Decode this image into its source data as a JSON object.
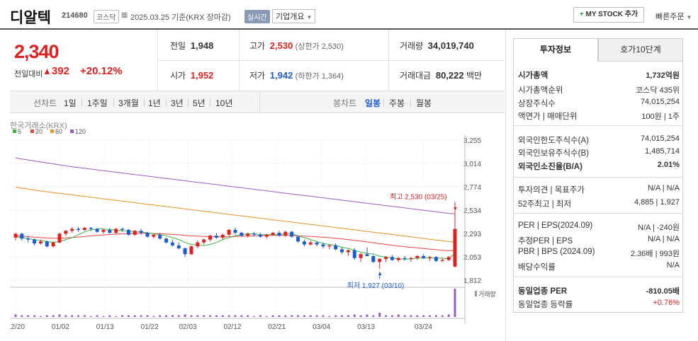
{
  "header": {
    "name": "디알텍",
    "code": "214680",
    "market": "코스닥",
    "date": "2025.03.25  기준(KRX 장마감)",
    "live": "실시간",
    "company_info": "기업개요",
    "my_stock": "MY STOCK 추가",
    "quick_order": "빠른주문"
  },
  "price": {
    "current": "2,340",
    "change_label": "전일대비",
    "change": "392",
    "change_pct": "+20.12%"
  },
  "stats": {
    "prev_label": "전일",
    "prev": "1,948",
    "open_label": "시가",
    "open": "1,952",
    "high_label": "고가",
    "high": "2,530",
    "upper_limit": "(상한가 2,530)",
    "low_label": "저가",
    "low": "1,942",
    "lower_limit": "(하한가 1,364)",
    "volume_label": "거래량",
    "volume": "34,019,740",
    "amount_label": "거래대금",
    "amount": "80,222",
    "amount_unit": "백만"
  },
  "periods": {
    "line_label": "선차트",
    "line": [
      "1일",
      "1주일",
      "3개월",
      "1년",
      "3년",
      "5년",
      "10년"
    ],
    "candle_label": "봉차트",
    "candle": [
      "일봉",
      "주봉",
      "월봉"
    ],
    "active": "일봉"
  },
  "chart_data": {
    "type": "candlestick",
    "source": "한국거래소(KRX)",
    "legend": [
      {
        "name": "5",
        "color": "#3cb43c"
      },
      {
        "name": "20",
        "color": "#e8453c"
      },
      {
        "name": "60",
        "color": "#f0902a"
      },
      {
        "name": "120",
        "color": "#9a5bc8"
      }
    ],
    "y_ticks": [
      "3,255",
      "3,014",
      "2,774",
      "2,534",
      "2,293",
      "2,053",
      "1,812"
    ],
    "ylim": [
      1812,
      3255
    ],
    "x_ticks": [
      "12/20",
      "01/02",
      "01/13",
      "01/22",
      "02/03",
      "02/12",
      "02/21",
      "03/04",
      "03/13",
      "03/24"
    ],
    "high_annotation": "최고 2,530 (03/25)",
    "low_annotation": "최저 1,927 (03/10)",
    "volume_label": "거래량",
    "candles": [
      [
        2250,
        2300,
        2220,
        2290
      ],
      [
        2290,
        2300,
        2220,
        2240
      ],
      [
        2240,
        2270,
        2200,
        2230
      ],
      [
        2230,
        2240,
        2170,
        2190
      ],
      [
        2190,
        2230,
        2180,
        2210
      ],
      [
        2210,
        2220,
        2150,
        2160
      ],
      [
        2160,
        2210,
        2150,
        2200
      ],
      [
        2200,
        2300,
        2190,
        2290
      ],
      [
        2290,
        2330,
        2270,
        2320
      ],
      [
        2320,
        2360,
        2300,
        2340
      ],
      [
        2340,
        2360,
        2310,
        2330
      ],
      [
        2330,
        2360,
        2320,
        2350
      ],
      [
        2350,
        2360,
        2320,
        2340
      ],
      [
        2340,
        2350,
        2300,
        2310
      ],
      [
        2310,
        2340,
        2290,
        2330
      ],
      [
        2330,
        2350,
        2290,
        2300
      ],
      [
        2300,
        2350,
        2290,
        2340
      ],
      [
        2340,
        2350,
        2310,
        2330
      ],
      [
        2330,
        2340,
        2270,
        2280
      ],
      [
        2280,
        2330,
        2270,
        2320
      ],
      [
        2320,
        2340,
        2280,
        2300
      ],
      [
        2300,
        2310,
        2250,
        2260
      ],
      [
        2260,
        2290,
        2240,
        2280
      ],
      [
        2280,
        2300,
        2230,
        2240
      ],
      [
        2240,
        2250,
        2190,
        2200
      ],
      [
        2200,
        2230,
        2160,
        2170
      ],
      [
        2170,
        2200,
        2130,
        2140
      ],
      [
        2140,
        2150,
        2050,
        2080
      ],
      [
        2080,
        2170,
        2070,
        2160
      ],
      [
        2160,
        2220,
        2140,
        2200
      ],
      [
        2200,
        2240,
        2180,
        2230
      ],
      [
        2230,
        2280,
        2210,
        2270
      ],
      [
        2270,
        2300,
        2240,
        2250
      ],
      [
        2250,
        2290,
        2230,
        2280
      ],
      [
        2280,
        2340,
        2270,
        2330
      ],
      [
        2330,
        2350,
        2280,
        2300
      ],
      [
        2300,
        2310,
        2260,
        2270
      ],
      [
        2270,
        2300,
        2250,
        2290
      ],
      [
        2290,
        2310,
        2260,
        2280
      ],
      [
        2280,
        2300,
        2250,
        2260
      ],
      [
        2260,
        2290,
        2240,
        2280
      ],
      [
        2280,
        2310,
        2270,
        2300
      ],
      [
        2300,
        2320,
        2260,
        2270
      ],
      [
        2270,
        2320,
        2260,
        2310
      ],
      [
        2310,
        2320,
        2250,
        2260
      ],
      [
        2260,
        2270,
        2200,
        2210
      ],
      [
        2210,
        2230,
        2160,
        2180
      ],
      [
        2180,
        2220,
        2170,
        2200
      ],
      [
        2200,
        2210,
        2160,
        2180
      ],
      [
        2180,
        2200,
        2140,
        2160
      ],
      [
        2160,
        2180,
        2130,
        2170
      ],
      [
        2170,
        2190,
        2120,
        2130
      ],
      [
        2130,
        2150,
        2080,
        2100
      ],
      [
        2100,
        2130,
        2060,
        2120
      ],
      [
        2120,
        2140,
        2020,
        2040
      ],
      [
        2040,
        2090,
        2000,
        2080
      ],
      [
        2080,
        2150,
        2060,
        2060
      ],
      [
        2060,
        2070,
        1990,
        2000
      ],
      [
        2000,
        2040,
        1927,
        2030
      ],
      [
        2030,
        2060,
        2000,
        2050
      ],
      [
        2050,
        2070,
        2010,
        2020
      ],
      [
        2020,
        2050,
        2000,
        2040
      ],
      [
        2040,
        2060,
        2010,
        2030
      ],
      [
        2030,
        2050,
        2000,
        2040
      ],
      [
        2040,
        2070,
        2020,
        2060
      ],
      [
        2060,
        2080,
        2030,
        2040
      ],
      [
        2040,
        2060,
        2010,
        2050
      ],
      [
        2050,
        2060,
        2000,
        2010
      ],
      [
        2010,
        2040,
        2000,
        2020
      ],
      [
        2020,
        2060,
        2010,
        2050
      ],
      [
        1952,
        2530,
        1942,
        2340
      ]
    ],
    "ma5": [
      2260,
      2250,
      2240,
      2230,
      2220,
      2210,
      2200,
      2210,
      2230,
      2250,
      2280,
      2310,
      2330,
      2340,
      2340,
      2330,
      2330,
      2320,
      2320,
      2310,
      2310,
      2300,
      2290,
      2280,
      2270,
      2250,
      2230,
      2200,
      2180,
      2170,
      2170,
      2180,
      2200,
      2230,
      2250,
      2270,
      2280,
      2290,
      2290,
      2280,
      2280,
      2280,
      2280,
      2290,
      2290,
      2270,
      2250,
      2230,
      2210,
      2190,
      2180,
      2170,
      2150,
      2140,
      2120,
      2100,
      2090,
      2080,
      2060,
      2050,
      2040,
      2030,
      2030,
      2030,
      2040,
      2040,
      2040,
      2040,
      2040,
      2030,
      2090
    ],
    "ma20": [
      2270,
      2265,
      2260,
      2255,
      2250,
      2248,
      2245,
      2245,
      2248,
      2252,
      2256,
      2262,
      2268,
      2274,
      2278,
      2282,
      2286,
      2290,
      2292,
      2293,
      2294,
      2294,
      2292,
      2290,
      2287,
      2283,
      2279,
      2273,
      2268,
      2265,
      2262,
      2260,
      2259,
      2259,
      2260,
      2262,
      2264,
      2266,
      2268,
      2270,
      2272,
      2273,
      2273,
      2272,
      2271,
      2268,
      2265,
      2262,
      2258,
      2254,
      2249,
      2243,
      2237,
      2230,
      2222,
      2214,
      2206,
      2197,
      2188,
      2180,
      2172,
      2164,
      2157,
      2150,
      2144,
      2138,
      2132,
      2126,
      2120,
      2115,
      2120
    ],
    "ma60": [
      2770,
      2760,
      2750,
      2740,
      2730,
      2722,
      2714,
      2706,
      2698,
      2690,
      2682,
      2674,
      2666,
      2658,
      2650,
      2642,
      2634,
      2626,
      2618,
      2610,
      2602,
      2594,
      2586,
      2578,
      2570,
      2562,
      2554,
      2546,
      2538,
      2530,
      2522,
      2514,
      2506,
      2498,
      2490,
      2482,
      2474,
      2466,
      2458,
      2450,
      2442,
      2434,
      2426,
      2418,
      2410,
      2402,
      2394,
      2386,
      2378,
      2370,
      2362,
      2354,
      2346,
      2338,
      2330,
      2322,
      2314,
      2306,
      2298,
      2290,
      2282,
      2274,
      2266,
      2258,
      2250,
      2242,
      2234,
      2226,
      2218,
      2210,
      2205
    ],
    "ma120": [
      3070,
      3060,
      3050,
      3040,
      3030,
      3020,
      3010,
      3000,
      2990,
      2980,
      2972,
      2964,
      2956,
      2948,
      2940,
      2932,
      2924,
      2916,
      2908,
      2900,
      2892,
      2884,
      2876,
      2868,
      2860,
      2852,
      2844,
      2836,
      2828,
      2820,
      2812,
      2804,
      2796,
      2788,
      2780,
      2772,
      2764,
      2756,
      2748,
      2740,
      2732,
      2724,
      2716,
      2708,
      2700,
      2692,
      2684,
      2676,
      2668,
      2660,
      2652,
      2644,
      2636,
      2628,
      2620,
      2612,
      2604,
      2596,
      2588,
      2580,
      2572,
      2564,
      2556,
      2548,
      2540,
      2532,
      2524,
      2516,
      2508,
      2500,
      2495
    ],
    "volume": [
      3,
      2,
      2,
      2,
      1,
      2,
      2,
      3,
      2,
      2,
      2,
      2,
      1,
      2,
      1,
      2,
      1,
      2,
      2,
      2,
      2,
      2,
      1,
      2,
      2,
      2,
      2,
      3,
      2,
      2,
      2,
      2,
      2,
      2,
      2,
      2,
      2,
      2,
      1,
      2,
      1,
      2,
      2,
      2,
      2,
      2,
      2,
      2,
      2,
      2,
      1,
      2,
      2,
      2,
      3,
      2,
      3,
      2,
      5,
      2,
      2,
      3,
      2,
      2,
      2,
      2,
      2,
      2,
      2,
      3,
      34
    ]
  },
  "side": {
    "tab_active": "투자정보",
    "tab_inactive": "호가10단계",
    "rows": [
      {
        "l": "시가총액",
        "r": "1,732억원",
        "bold": true
      },
      {
        "l": "시가총액순위",
        "r": "코스닥 435위"
      },
      {
        "l": "상장주식수",
        "r": "74,015,254"
      },
      {
        "l": "액면가 | 매매단위",
        "r": "100원 | 1주"
      },
      {
        "l": "외국인한도주식수(A)",
        "r": "74,015,254"
      },
      {
        "l": "외국인보유주식수(B)",
        "r": "1,485,714"
      },
      {
        "l": "외국인소진율(B/A)",
        "r": "2.01%",
        "bold": true
      },
      {
        "l": "투자의견 | 목표주가",
        "r": "N/A | N/A"
      },
      {
        "l": "52주최고 | 최저",
        "r": "4,885 | 1,927"
      },
      {
        "l": "PER | EPS(2024.09)",
        "r": "N/A | -240원"
      },
      {
        "l": "추정PER | EPS",
        "r": "N/A | N/A"
      },
      {
        "l": "PBR | BPS (2024.09)",
        "r": "2.36배 | 993원"
      },
      {
        "l": "배당수익률",
        "r": "N/A"
      },
      {
        "l": "동일업종 PER",
        "r": "-810.05배",
        "bold": true
      },
      {
        "l": "동일업종 등락률",
        "r": "+0.76%",
        "red": true
      }
    ]
  }
}
